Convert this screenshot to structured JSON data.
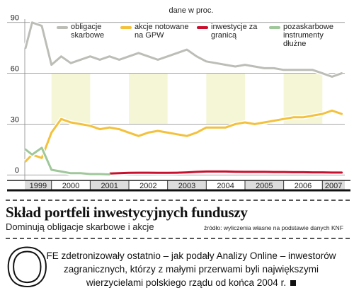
{
  "chart_data": {
    "type": "line",
    "unit": "dane w proc.",
    "title": "Skład portfeli inwestycyjnych funduszy",
    "subtitle": "Dominują obligacje skarbowe i akcje",
    "source": "źródło: wyliczenia własne na podstawie danych KNF",
    "x": [
      1999.33,
      1999.5,
      1999.75,
      2000,
      2000.25,
      2000.5,
      2000.75,
      2001,
      2001.25,
      2001.5,
      2001.75,
      2002,
      2002.25,
      2002.5,
      2002.75,
      2003,
      2003.25,
      2003.5,
      2003.75,
      2004,
      2004.25,
      2004.5,
      2004.75,
      2005,
      2005.25,
      2005.5,
      2005.75,
      2006,
      2006.25,
      2006.5,
      2006.75,
      2007,
      2007.25,
      2007.5
    ],
    "series": [
      {
        "name": "obligacje skarbowe",
        "color": "#bdbdb8",
        "values": [
          75,
          90,
          88,
          65,
          70,
          66,
          68,
          70,
          68,
          70,
          68,
          70,
          72,
          70,
          68,
          70,
          72,
          74,
          70,
          67,
          66,
          65,
          64,
          65,
          64,
          63,
          63,
          62,
          62,
          62,
          62,
          60,
          58,
          60
        ]
      },
      {
        "name": "akcje notowane na GPW",
        "color": "#f3c13c",
        "values": [
          8,
          12,
          10,
          25,
          33,
          31,
          30,
          29,
          27,
          28,
          27,
          25,
          23,
          25,
          26,
          25,
          24,
          23,
          25,
          28,
          28,
          28,
          30,
          31,
          30,
          31,
          32,
          33,
          34,
          34,
          35,
          36,
          38,
          36
        ]
      },
      {
        "name": "inwestycje za granicą",
        "color": "#c8102e",
        "values": [
          null,
          null,
          null,
          null,
          null,
          null,
          null,
          null,
          0.3,
          0.8,
          1.0,
          1.2,
          1.3,
          1.3,
          1.2,
          1.2,
          1.3,
          1.5,
          1.8,
          2,
          2,
          2,
          1.9,
          1.8,
          1.8,
          1.8,
          1.7,
          1.7,
          1.6,
          1.6,
          1.5,
          1.5,
          1.4,
          1.4
        ]
      },
      {
        "name": "pozaskarbowe instrumenty dłużne",
        "color": "#9fc79a",
        "values": [
          15,
          12,
          16,
          3,
          2,
          1,
          1,
          0.5,
          0.5,
          0.3,
          null,
          null,
          null,
          null,
          null,
          null,
          null,
          null,
          null,
          null,
          null,
          null,
          null,
          null,
          null,
          null,
          null,
          null,
          null,
          null,
          null,
          null,
          null,
          null
        ]
      }
    ],
    "xlim": [
      1999.31,
      2007.58
    ],
    "xticks": [
      1999,
      2000,
      2001,
      2002,
      2003,
      2004,
      2005,
      2006,
      2007
    ],
    "ylim": [
      -2,
      92
    ],
    "yticks": [
      0,
      30,
      60,
      90
    ],
    "grid": true
  },
  "article": {
    "drop_cap": "O",
    "text": "FE zdetronizowały ostatnio – jak podały Analizy Online – inwestorów zagranicznych, którzy z małymi przerwami byli największymi wierzycielami polskiego rządu od końca 2004 r."
  }
}
